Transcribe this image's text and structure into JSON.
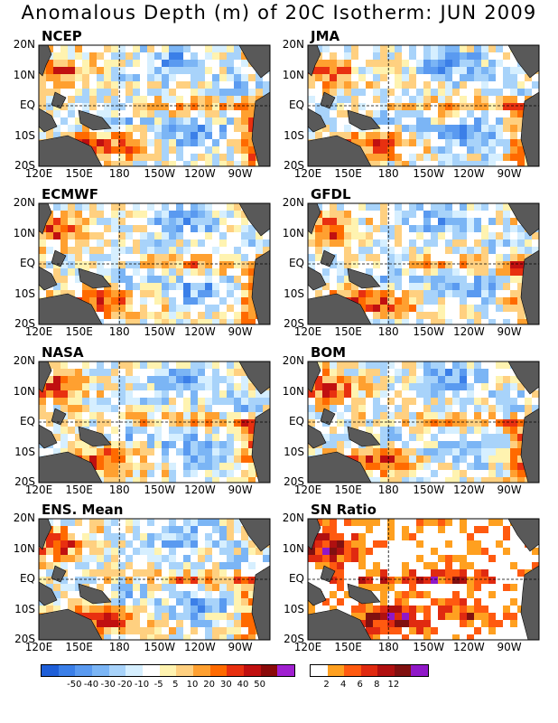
{
  "title": "Anomalous Depth (m) of 20C Isotherm: JUN 2009",
  "lat_labels": [
    "20N",
    "10N",
    "EQ",
    "10S",
    "20S"
  ],
  "lon_labels": [
    "120E",
    "150E",
    "180",
    "150W",
    "120W",
    "90W"
  ],
  "panels": [
    {
      "name": "NCEP",
      "scheme": "depth",
      "seed": 3
    },
    {
      "name": "JMA",
      "scheme": "depth",
      "seed": 7
    },
    {
      "name": "ECMWF",
      "scheme": "depth",
      "seed": 11
    },
    {
      "name": "GFDL",
      "scheme": "depth",
      "seed": 17
    },
    {
      "name": "NASA",
      "scheme": "depth",
      "seed": 23
    },
    {
      "name": "BOM",
      "scheme": "depth",
      "seed": 29
    },
    {
      "name": "ENS. Mean",
      "scheme": "depth",
      "seed": 31
    },
    {
      "name": "SN Ratio",
      "scheme": "sn",
      "seed": 37
    }
  ],
  "depth_colorbar": {
    "colors": [
      "#1f5fd8",
      "#3b7fe8",
      "#5a9af0",
      "#7bb5f5",
      "#a8d3fa",
      "#d6efff",
      "#ffffff",
      "#fff3b0",
      "#ffd080",
      "#ffa030",
      "#ff6a00",
      "#e83010",
      "#c01010",
      "#8a0a0a",
      "#a020d0"
    ],
    "labels": [
      "-50",
      "-40",
      "-30",
      "-20",
      "-10",
      "-5",
      "5",
      "10",
      "20",
      "30",
      "40",
      "50"
    ]
  },
  "sn_colorbar": {
    "colors": [
      "#ffffff",
      "#ffa020",
      "#ff5a10",
      "#e02a10",
      "#b01010",
      "#801010",
      "#9018c8"
    ],
    "labels": [
      "2",
      "4",
      "6",
      "8",
      "12"
    ]
  },
  "land_color": "#595959"
}
